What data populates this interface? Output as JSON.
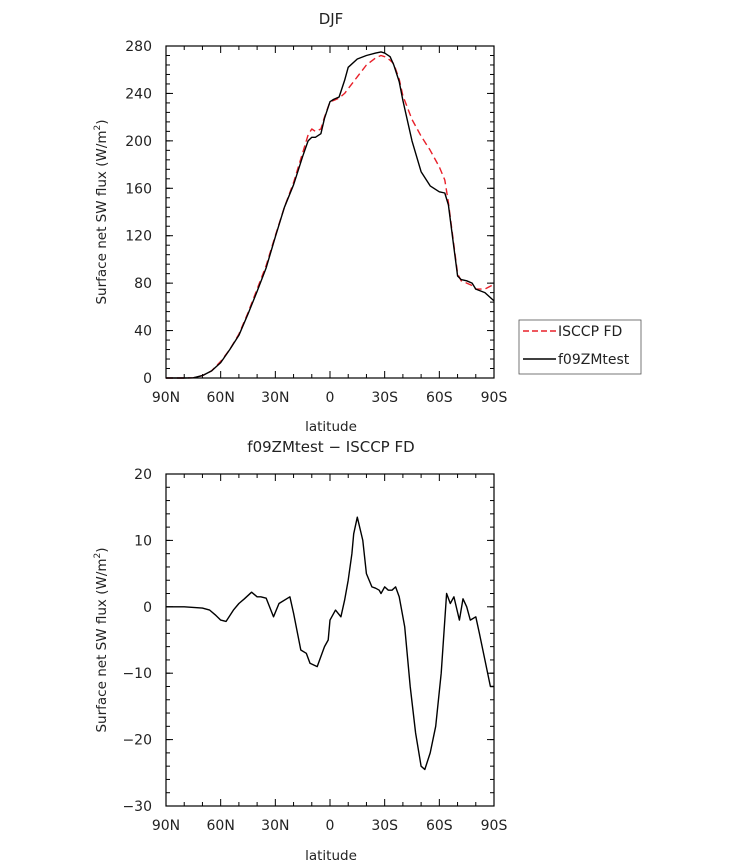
{
  "chart_data": [
    {
      "type": "line",
      "title": "DJF",
      "xlabel": "latitude",
      "ylabel": "Surface net SW flux (W/m²)",
      "ylabel_main": "Surface net SW flux (W/m",
      "ylabel_sup": "2",
      "ylabel_end": ")",
      "xlim": [
        -90,
        90
      ],
      "ylim": [
        0,
        280
      ],
      "x_ticks": [
        -90,
        -60,
        -30,
        0,
        30,
        60,
        90
      ],
      "x_tick_labels": [
        "90N",
        "60N",
        "30N",
        "0",
        "30S",
        "60S",
        "90S"
      ],
      "y_ticks": [
        0,
        40,
        80,
        120,
        160,
        200,
        240,
        280
      ],
      "y_tick_labels": [
        "0",
        "40",
        "80",
        "120",
        "160",
        "200",
        "240",
        "280"
      ],
      "legend": {
        "placement": "right",
        "entries": [
          "ISCCP FD",
          "f09ZMtest"
        ]
      },
      "series": [
        {
          "name": "ISCCP FD",
          "color": "#e8202a",
          "dash": true,
          "x": [
            -90,
            -80,
            -75,
            -70,
            -65,
            -60,
            -55,
            -50,
            -45,
            -40,
            -35,
            -30,
            -25,
            -20,
            -15,
            -12,
            -10,
            -8,
            -5,
            -3,
            0,
            2,
            5,
            8,
            10,
            15,
            20,
            25,
            28,
            30,
            33,
            35,
            38,
            40,
            45,
            50,
            55,
            60,
            63,
            65,
            68,
            70,
            72,
            75,
            78,
            80,
            85,
            90
          ],
          "y": [
            0,
            0,
            0.2,
            2,
            6,
            14,
            24,
            37,
            55,
            75,
            95,
            120,
            144,
            165,
            190,
            205,
            210,
            208,
            210,
            220,
            233,
            234,
            236,
            240,
            244,
            254,
            264,
            270,
            272,
            271,
            268,
            265,
            252,
            238,
            218,
            204,
            192,
            178,
            167,
            148,
            112,
            88,
            82,
            80,
            78,
            75,
            75,
            79
          ]
        },
        {
          "name": "f09ZMtest",
          "color": "#000000",
          "dash": false,
          "x": [
            -90,
            -80,
            -75,
            -70,
            -65,
            -60,
            -55,
            -50,
            -45,
            -40,
            -35,
            -30,
            -25,
            -20,
            -15,
            -12,
            -10,
            -8,
            -5,
            -3,
            0,
            2,
            5,
            8,
            10,
            15,
            20,
            25,
            28,
            30,
            33,
            35,
            38,
            40,
            45,
            50,
            55,
            60,
            63,
            65,
            68,
            70,
            72,
            75,
            78,
            80,
            85,
            90
          ],
          "y": [
            0,
            0,
            0.2,
            2,
            6,
            13,
            24,
            36,
            54,
            73,
            93,
            119,
            144,
            163,
            187,
            200,
            203,
            203,
            206,
            219,
            233,
            235,
            237,
            251,
            262,
            269,
            272,
            274,
            275,
            274,
            271,
            264,
            250,
            234,
            200,
            174,
            162,
            157,
            156,
            146,
            110,
            86,
            83,
            82,
            80,
            75,
            72,
            65
          ]
        }
      ]
    },
    {
      "type": "line",
      "title": "f09ZMtest − ISCCP FD",
      "xlabel": "latitude",
      "ylabel": "Surface net SW flux (W/m²)",
      "ylabel_main": "Surface net SW flux (W/m",
      "ylabel_sup": "2",
      "ylabel_end": ")",
      "xlim": [
        -90,
        90
      ],
      "ylim": [
        -30,
        20
      ],
      "x_ticks": [
        -90,
        -60,
        -30,
        0,
        30,
        60,
        90
      ],
      "x_tick_labels": [
        "90N",
        "60N",
        "30N",
        "0",
        "30S",
        "60S",
        "90S"
      ],
      "y_ticks": [
        -30,
        -20,
        -10,
        0,
        10,
        20
      ],
      "y_tick_labels": [
        "−30",
        "−20",
        "−10",
        "0",
        "10",
        "20"
      ],
      "series": [
        {
          "name": "f09ZMtest − ISCCP FD",
          "color": "#000000",
          "dash": false,
          "x": [
            -90,
            -80,
            -70,
            -66,
            -63,
            -60,
            -57,
            -53,
            -50,
            -47,
            -43,
            -40,
            -38,
            -35,
            -31,
            -28,
            -22,
            -20,
            -16,
            -13,
            -11,
            -7,
            -3,
            -1,
            0,
            3,
            6,
            8,
            10,
            12,
            13,
            15,
            18,
            20,
            23,
            25,
            27,
            28,
            30,
            32,
            34,
            36,
            38,
            41,
            44,
            47,
            50,
            52,
            55,
            58,
            61,
            64,
            66,
            68,
            71,
            73,
            75,
            77,
            80,
            82,
            85,
            88,
            90
          ],
          "y": [
            0,
            0,
            -0.2,
            -0.5,
            -1.2,
            -2,
            -2.2,
            -0.5,
            0.5,
            1.2,
            2.2,
            1.5,
            1.5,
            1.3,
            -1.5,
            0.5,
            1.5,
            -1,
            -6.5,
            -7,
            -8.5,
            -9,
            -6,
            -5,
            -2,
            -0.5,
            -1.5,
            1,
            4,
            8,
            11,
            13.5,
            10,
            5,
            3,
            2.8,
            2.5,
            2,
            3,
            2.5,
            2.5,
            3,
            1.5,
            -3,
            -12,
            -19,
            -24,
            -24.5,
            -22,
            -18,
            -10,
            2,
            0.5,
            1.5,
            -2,
            1.2,
            0,
            -2,
            -1.5,
            -4,
            -8,
            -12,
            -12
          ]
        }
      ]
    }
  ]
}
